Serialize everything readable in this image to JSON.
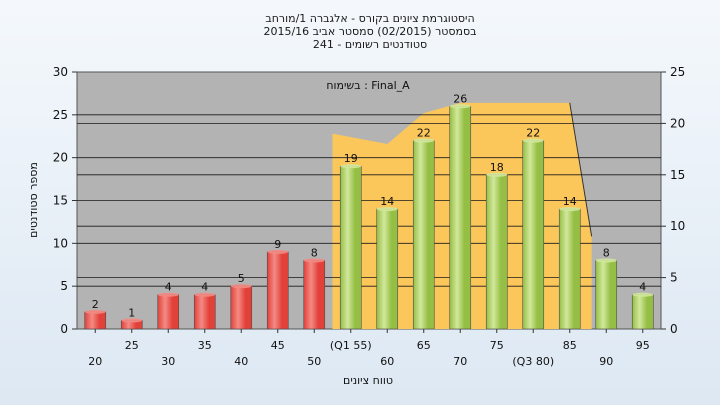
{
  "colors": {
    "plot_bg": "#b3b3b3",
    "band": "#fcc75a",
    "bar_red": "#e2413a",
    "bar_red_light": "#f38b84",
    "bar_green": "#95bf44",
    "bar_green_light": "#d2e89c",
    "grid": "#1a1a1a"
  },
  "chart_data": {
    "type": "bar",
    "title": [
      "היסטוגרמת ציונים בקורס - אלגברה 1/מורחב",
      "בסמסטר  (02/2015)  סמסטר אביב 2015/16",
      "סטודנטים רשומים - 241"
    ],
    "annotation": "בשימוח : Final_A",
    "xlabel": "טווח ציונים",
    "ylabel": "מספר סטודנטים",
    "ylim": [
      0,
      30
    ],
    "yticks": [
      0,
      5,
      10,
      15,
      20,
      25,
      30
    ],
    "y2lim": [
      0,
      25
    ],
    "y2ticks": [
      0,
      5,
      10,
      15,
      20,
      25
    ],
    "grid": true,
    "categories": [
      "20",
      "25",
      "30",
      "35",
      "40",
      "45",
      "50",
      "(Q1 55)",
      "60",
      "65",
      "70",
      "75",
      "(Q3 80)",
      "85",
      "90",
      "95"
    ],
    "values": [
      2,
      1,
      4,
      4,
      5,
      9,
      8,
      19,
      14,
      22,
      26,
      18,
      22,
      14,
      8,
      4
    ],
    "series_color": [
      "red",
      "red",
      "red",
      "red",
      "red",
      "red",
      "red",
      "green",
      "green",
      "green",
      "green",
      "green",
      "green",
      "green",
      "green",
      "green"
    ],
    "band": {
      "description_values": [
        19,
        18,
        21,
        22,
        22,
        22,
        22,
        9
      ],
      "from_category": "(Q1 55)",
      "to_category": "(Q3 80)"
    }
  }
}
